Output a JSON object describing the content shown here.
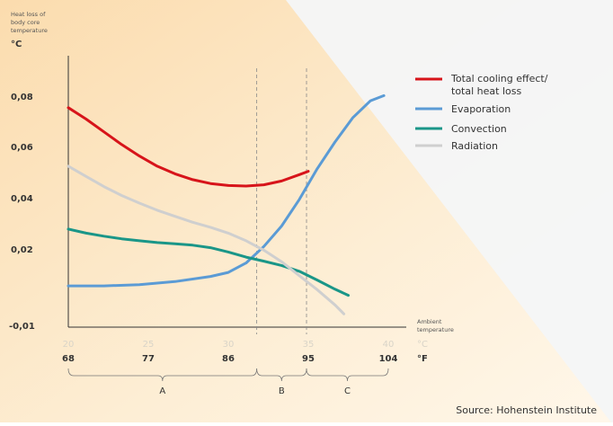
{
  "chart_data": {
    "type": "line",
    "y_axis_label_lines": [
      "Heat loss of",
      "body core",
      "temperature"
    ],
    "y_unit": "°C",
    "y_ticks": [
      "0,08",
      "0,06",
      "0,04",
      "0,02",
      "-0,01"
    ],
    "x_axis_label_lines": [
      "Ambient",
      "temperature"
    ],
    "x_ticks_celsius": [
      "20",
      "25",
      "30",
      "35",
      "40"
    ],
    "x_unit_celsius": "°C",
    "x_ticks_fahrenheit": [
      "68",
      "77",
      "86",
      "95",
      "104"
    ],
    "x_unit_fahrenheit": "°F",
    "xlim_f": [
      68,
      104
    ],
    "zones": [
      {
        "label": "A",
        "from_f": 68,
        "to_f": 89.2
      },
      {
        "label": "B",
        "from_f": 89.2,
        "to_f": 94.8
      },
      {
        "label": "C",
        "from_f": 94.8,
        "to_f": 104
      }
    ],
    "zone_dividers_f": [
      89.2,
      94.8
    ],
    "legend_placement": "top-right",
    "series": [
      {
        "name": "Total cooling effect/ total heat loss",
        "legend_lines": [
          "Total cooling effect/",
          "total heat loss"
        ],
        "color": "#d7141a",
        "points": [
          [
            68,
            0.0755
          ],
          [
            70,
            0.071
          ],
          [
            72,
            0.066
          ],
          [
            74,
            0.061
          ],
          [
            76,
            0.0565
          ],
          [
            78,
            0.0525
          ],
          [
            80,
            0.0495
          ],
          [
            82,
            0.0472
          ],
          [
            84,
            0.0457
          ],
          [
            86,
            0.0449
          ],
          [
            88,
            0.0447
          ],
          [
            90,
            0.0452
          ],
          [
            92,
            0.0467
          ],
          [
            94,
            0.0492
          ],
          [
            95,
            0.0505
          ]
        ]
      },
      {
        "name": "Evaporation",
        "legend_lines": [
          "Evaporation"
        ],
        "color": "#5b9bd5",
        "points": [
          [
            68,
            0.0055
          ],
          [
            72,
            0.0055
          ],
          [
            76,
            0.006
          ],
          [
            80,
            0.0072
          ],
          [
            84,
            0.0092
          ],
          [
            86,
            0.0108
          ],
          [
            88,
            0.0145
          ],
          [
            90,
            0.021
          ],
          [
            92,
            0.029
          ],
          [
            94,
            0.0395
          ],
          [
            96,
            0.0515
          ],
          [
            98,
            0.062
          ],
          [
            100,
            0.0715
          ],
          [
            102,
            0.0782
          ],
          [
            103.5,
            0.0802
          ]
        ]
      },
      {
        "name": "Convection",
        "legend_lines": [
          "Convection"
        ],
        "color": "#1a9688",
        "points": [
          [
            68,
            0.0278
          ],
          [
            70,
            0.0262
          ],
          [
            72,
            0.025
          ],
          [
            74,
            0.024
          ],
          [
            76,
            0.0232
          ],
          [
            78,
            0.0225
          ],
          [
            80,
            0.022
          ],
          [
            82,
            0.0215
          ],
          [
            84,
            0.0205
          ],
          [
            86,
            0.0188
          ],
          [
            88,
            0.0168
          ],
          [
            90,
            0.0152
          ],
          [
            92,
            0.0135
          ],
          [
            94,
            0.0112
          ],
          [
            96,
            0.0078
          ],
          [
            98,
            0.0042
          ],
          [
            99.5,
            0.0018
          ]
        ]
      },
      {
        "name": "Radiation",
        "legend_lines": [
          "Radiation"
        ],
        "color": "#cfcfcf",
        "points": [
          [
            68,
            0.0525
          ],
          [
            70,
            0.0485
          ],
          [
            72,
            0.0445
          ],
          [
            74,
            0.041
          ],
          [
            76,
            0.038
          ],
          [
            78,
            0.0352
          ],
          [
            80,
            0.0328
          ],
          [
            82,
            0.0305
          ],
          [
            84,
            0.0285
          ],
          [
            86,
            0.0262
          ],
          [
            88,
            0.0232
          ],
          [
            90,
            0.0195
          ],
          [
            92,
            0.015
          ],
          [
            94,
            0.0095
          ],
          [
            96,
            0.004
          ],
          [
            98,
            -0.002
          ],
          [
            99,
            -0.0055
          ]
        ]
      }
    ]
  },
  "source": "Source: Hohenstein Institute"
}
